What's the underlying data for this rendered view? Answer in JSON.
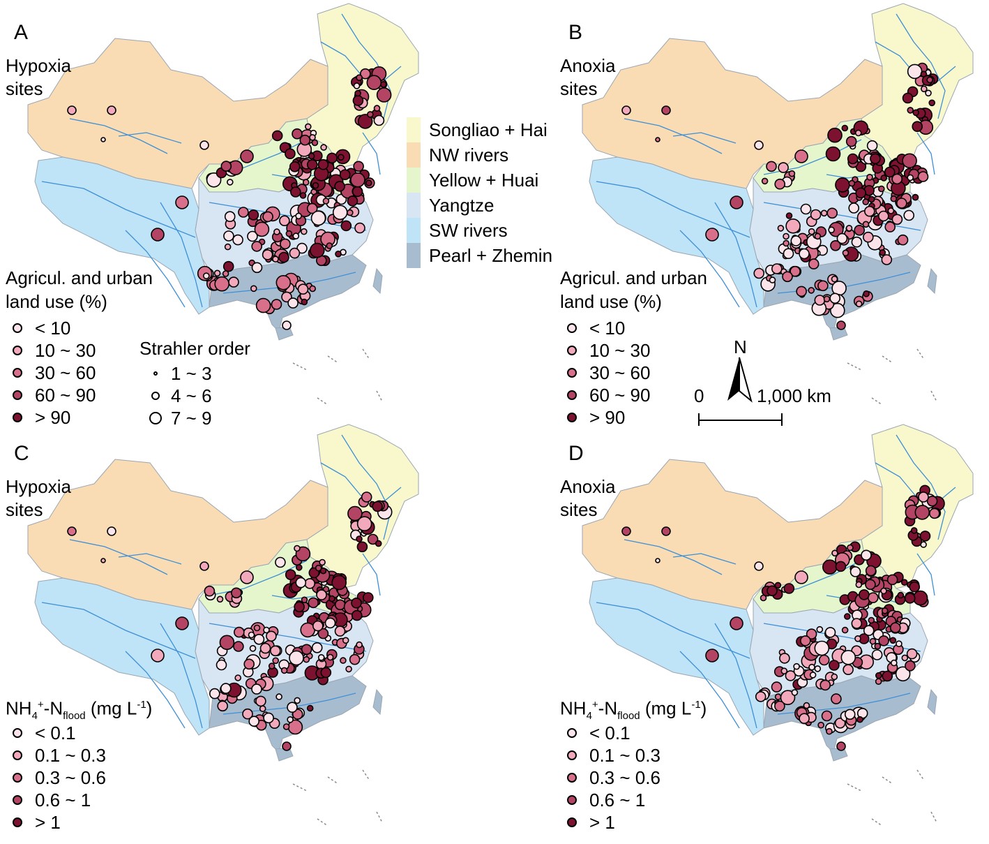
{
  "basin_legend": [
    {
      "label": "Songliao + Hai",
      "color": "#f8f8cc"
    },
    {
      "label": "NW rivers",
      "color": "#f9dcb4"
    },
    {
      "label": "Yellow + Huai",
      "color": "#e6f6cc"
    },
    {
      "label": "Yangtze",
      "color": "#d8e6f4"
    },
    {
      "label": "SW rivers",
      "color": "#c0e4f7"
    },
    {
      "label": "Pearl + Zhemin",
      "color": "#a8bcd0"
    }
  ],
  "river_color": "#3d8fd6",
  "panels": [
    {
      "letter": "A",
      "title_line1": "Hypoxia",
      "title_line2": "sites",
      "legend_title_line1": "Agricul. and urban",
      "legend_title_line2": "land use (%)",
      "classes": [
        "< 10",
        "10 ~ 30",
        "30 ~ 60",
        "60 ~ 90",
        "> 90"
      ],
      "site_metric": "landuse"
    },
    {
      "letter": "B",
      "title_line1": "Anoxia",
      "title_line2": "sites",
      "legend_title_line1": "Agricul. and urban",
      "legend_title_line2": "land use (%)",
      "classes": [
        "< 10",
        "10 ~ 30",
        "30 ~ 60",
        "60 ~ 90",
        "> 90"
      ],
      "site_metric": "landuse"
    },
    {
      "letter": "C",
      "title_line1": "Hypoxia",
      "title_line2": "sites",
      "legend_nh4_main": "NH",
      "legend_nh4_sub4": "4",
      "legend_nh4_sup": "+",
      "legend_nh4_mid": "-N",
      "legend_nh4_subflood": "flood",
      "legend_nh4_unit": " (mg L",
      "legend_nh4_unitsup": "-1",
      "legend_nh4_close": ")",
      "classes": [
        "< 0.1",
        "0.1 ~ 0.3",
        "0.3 ~ 0.6",
        "0.6 ~ 1",
        "> 1"
      ],
      "site_metric": "nh4"
    },
    {
      "letter": "D",
      "title_line1": "Anoxia",
      "title_line2": "sites",
      "legend_nh4_main": "NH",
      "legend_nh4_sub4": "4",
      "legend_nh4_sup": "+",
      "legend_nh4_mid": "-N",
      "legend_nh4_subflood": "flood",
      "legend_nh4_unit": " (mg L",
      "legend_nh4_unitsup": "-1",
      "legend_nh4_close": ")",
      "classes": [
        "< 0.1",
        "0.1 ~ 0.3",
        "0.3 ~ 0.6",
        "0.6 ~ 1",
        "> 1"
      ],
      "site_metric": "nh4"
    }
  ],
  "class_colors": [
    "#fbe4ea",
    "#f2a9bc",
    "#d9708b",
    "#b34464",
    "#7c1230"
  ],
  "strahler": {
    "title": "Strahler order",
    "classes": [
      "1 ~ 3",
      "4 ~ 6",
      "7 ~ 9"
    ]
  },
  "north_label": "N",
  "scale": {
    "start": "0",
    "end": "1,000 km"
  }
}
